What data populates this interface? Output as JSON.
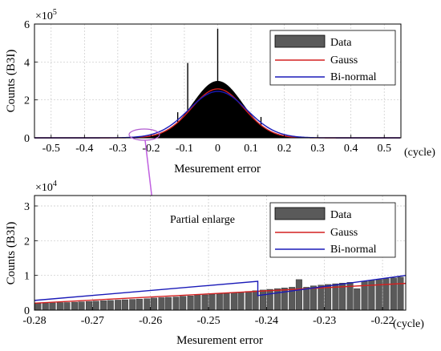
{
  "chart_data": [
    {
      "type": "bar",
      "ylabel": "Counts (B3I)",
      "xlabel": "Mesurement error",
      "x_unit": "(cycle)",
      "y_exponent": "5",
      "y_exponent_base": "×10",
      "xlim": [
        -0.55,
        0.55
      ],
      "ylim": [
        0,
        6
      ],
      "x_ticks": [
        -0.5,
        -0.4,
        -0.3,
        -0.2,
        -0.1,
        0,
        0.1,
        0.2,
        0.3,
        0.4,
        0.5
      ],
      "x_tick_labels": [
        "-0.5",
        "-0.4",
        "-0.3",
        "-0.2",
        "-0.1",
        "0",
        "0.1",
        "0.2",
        "0.3",
        "0.4",
        "0.5"
      ],
      "y_ticks": [
        0,
        2,
        4,
        6
      ],
      "y_tick_labels": [
        "0",
        "2",
        "4",
        "6"
      ],
      "grid": true,
      "legend_position": "top-right",
      "legend": [
        "Data",
        "Gauss",
        "Bi-normal"
      ],
      "series": [
        {
          "name": "Data",
          "kind": "histogram",
          "color": "#000000",
          "peak": 3.0,
          "sigma": 0.075,
          "spikes": [
            {
              "x": -0.12,
              "y": 1.35
            },
            {
              "x": -0.09,
              "y": 3.95
            },
            {
              "x": 0.0,
              "y": 5.75
            },
            {
              "x": 0.13,
              "y": 1.1
            }
          ]
        },
        {
          "name": "Gauss",
          "kind": "gaussian",
          "color": "#d42020",
          "peak": 2.58,
          "sigma": 0.079
        },
        {
          "name": "Bi-normal",
          "kind": "gaussian",
          "color": "#1a1ab8",
          "peak": 2.45,
          "sigma": 0.087
        }
      ]
    },
    {
      "type": "bar",
      "ylabel": "Counts (B3I)",
      "xlabel": "Mesurement error",
      "x_unit": "(cycle)",
      "y_exponent": "4",
      "y_exponent_base": "×10",
      "xlim": [
        -0.28,
        -0.216
      ],
      "ylim": [
        0,
        3.3
      ],
      "x_ticks": [
        -0.28,
        -0.27,
        -0.26,
        -0.25,
        -0.24,
        -0.23,
        -0.22
      ],
      "x_tick_labels": [
        "-0.28",
        "-0.27",
        "-0.26",
        "-0.25",
        "-0.24",
        "-0.23",
        "-0.22"
      ],
      "y_ticks": [
        0,
        1,
        2,
        3
      ],
      "y_tick_labels": [
        "0",
        "1",
        "2",
        "3"
      ],
      "grid": true,
      "legend_position": "top-right",
      "legend": [
        "Data",
        "Gauss",
        "Bi-normal"
      ],
      "annotation": "Partial enlarge",
      "bar_width": 0.00125,
      "bars": {
        "x": [
          -0.2794,
          -0.2781,
          -0.2769,
          -0.2756,
          -0.2744,
          -0.2731,
          -0.2719,
          -0.2706,
          -0.2694,
          -0.2681,
          -0.2669,
          -0.2656,
          -0.2644,
          -0.2631,
          -0.2619,
          -0.2606,
          -0.2594,
          -0.2581,
          -0.2569,
          -0.2556,
          -0.2544,
          -0.2531,
          -0.2519,
          -0.2506,
          -0.2494,
          -0.2481,
          -0.2469,
          -0.2456,
          -0.2444,
          -0.2431,
          -0.2419,
          -0.2406,
          -0.2394,
          -0.2381,
          -0.2369,
          -0.2356,
          -0.2344,
          -0.2331,
          -0.2319,
          -0.2306,
          -0.2294,
          -0.2281,
          -0.2269,
          -0.2256,
          -0.2244,
          -0.2231,
          -0.2219,
          -0.2206,
          -0.2194,
          -0.2181,
          -0.2169
        ],
        "y": [
          0.19,
          0.2,
          0.21,
          0.22,
          0.22,
          0.23,
          0.24,
          0.25,
          0.26,
          0.27,
          0.28,
          0.29,
          0.3,
          0.31,
          0.32,
          0.33,
          0.35,
          0.36,
          0.37,
          0.38,
          0.4,
          0.41,
          0.43,
          0.44,
          0.46,
          0.47,
          0.49,
          0.5,
          0.52,
          0.54,
          0.56,
          0.58,
          0.6,
          0.62,
          0.64,
          0.66,
          0.88,
          0.66,
          0.7,
          0.72,
          0.74,
          0.76,
          0.78,
          0.8,
          0.62,
          0.83,
          0.86,
          0.88,
          0.91,
          0.93,
          0.95
        ]
      },
      "series": [
        {
          "name": "Data",
          "color": "#5a5a5a"
        },
        {
          "name": "Gauss",
          "color": "#d42020",
          "x": [
            -0.28,
            -0.216
          ],
          "y": [
            0.2,
            0.77
          ]
        },
        {
          "name": "Bi-normal",
          "color": "#1a1ab8",
          "x": [
            -0.28,
            -0.2415,
            -0.2415,
            -0.216
          ],
          "y": [
            0.28,
            0.83,
            0.42,
            1.0
          ]
        }
      ]
    }
  ]
}
